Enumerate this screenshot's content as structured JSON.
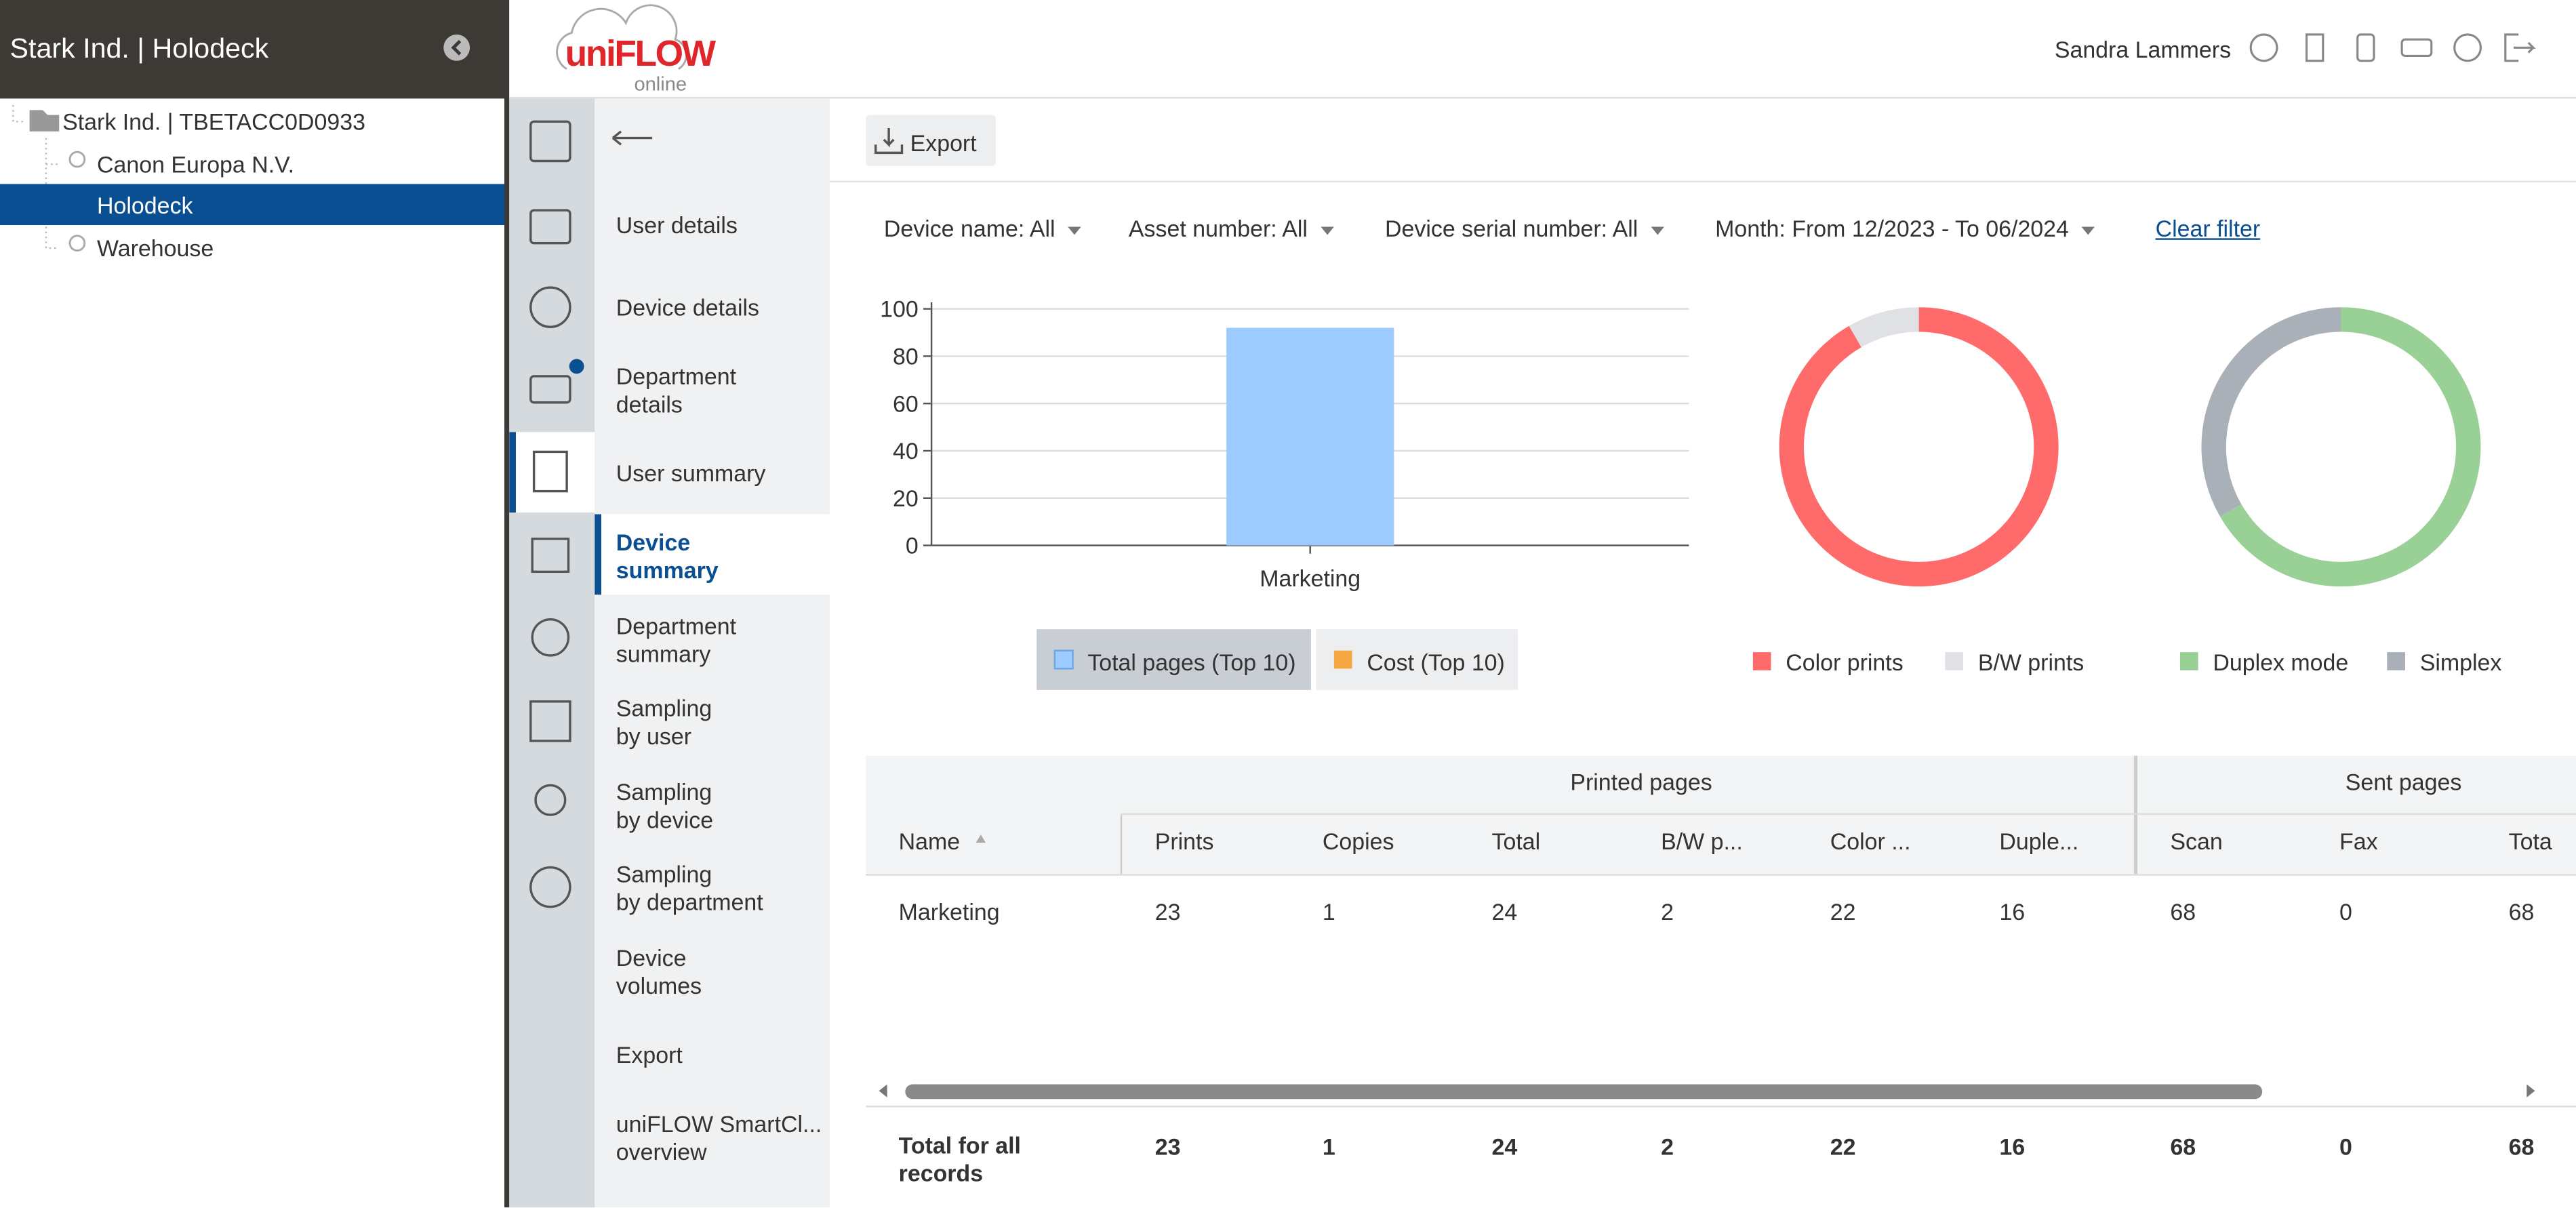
{
  "header": {
    "tenant": "Stark Ind. | Holodeck",
    "logo": "uniFLOW",
    "logo_sub": "online",
    "user": "Sandra Lammers"
  },
  "tree": [
    "Stark Ind. | TBETACC0D0933",
    "Canon Europa N.V.",
    "Holodeck",
    "Warehouse"
  ],
  "menu": [
    [
      "User details"
    ],
    [
      "Device details"
    ],
    [
      "Department",
      "details"
    ],
    [
      "User summary"
    ],
    [
      "Device",
      "summary"
    ],
    [
      "Department",
      "summary"
    ],
    [
      "Sampling",
      "by user"
    ],
    [
      "Sampling",
      "by device"
    ],
    [
      "Sampling",
      "by department"
    ],
    [
      "Device",
      "volumes"
    ],
    [
      "Export"
    ],
    [
      "uniFLOW SmartCl...",
      "overview"
    ]
  ],
  "toolbar": {
    "export": "Export"
  },
  "filters": [
    "Device name: All",
    "Asset number: All",
    "Device serial number: All",
    "Month: From 12/2023 - To 06/2024"
  ],
  "clear_filter": "Clear filter",
  "chart_data": [
    {
      "type": "bar",
      "categories": [
        "Marketing"
      ],
      "series": [
        {
          "name": "Total pages (Top 10)",
          "color": "#9ecbff",
          "values": [
            92
          ]
        },
        {
          "name": "Cost (Top 10)",
          "color": "#f5a742",
          "values": [
            null
          ]
        }
      ],
      "ylim": [
        0,
        100
      ],
      "yticks": [
        0,
        20,
        40,
        60,
        80,
        100
      ],
      "grid": true
    },
    {
      "type": "pie",
      "categories": [
        "Color prints",
        "B/W prints"
      ],
      "values": [
        22,
        2
      ],
      "colors": [
        "#ff6b6b",
        "#dfe1e5"
      ]
    },
    {
      "type": "pie",
      "categories": [
        "Duplex mode",
        "Simplex"
      ],
      "values": [
        16,
        8
      ],
      "colors": [
        "#99d096",
        "#aab0b8"
      ]
    }
  ],
  "table": {
    "group_headers": [
      "Printed pages",
      "Sent pages"
    ],
    "columns": [
      "Name",
      "Prints",
      "Copies",
      "Total",
      "B/W p...",
      "Color ...",
      "Duple...",
      "Scan",
      "Fax",
      "Tota"
    ],
    "rows": [
      [
        "Marketing",
        23,
        1,
        24,
        2,
        22,
        16,
        68,
        0,
        68
      ]
    ],
    "total": [
      "Total for all records",
      23,
      1,
      24,
      2,
      22,
      16,
      68,
      0,
      68
    ]
  }
}
